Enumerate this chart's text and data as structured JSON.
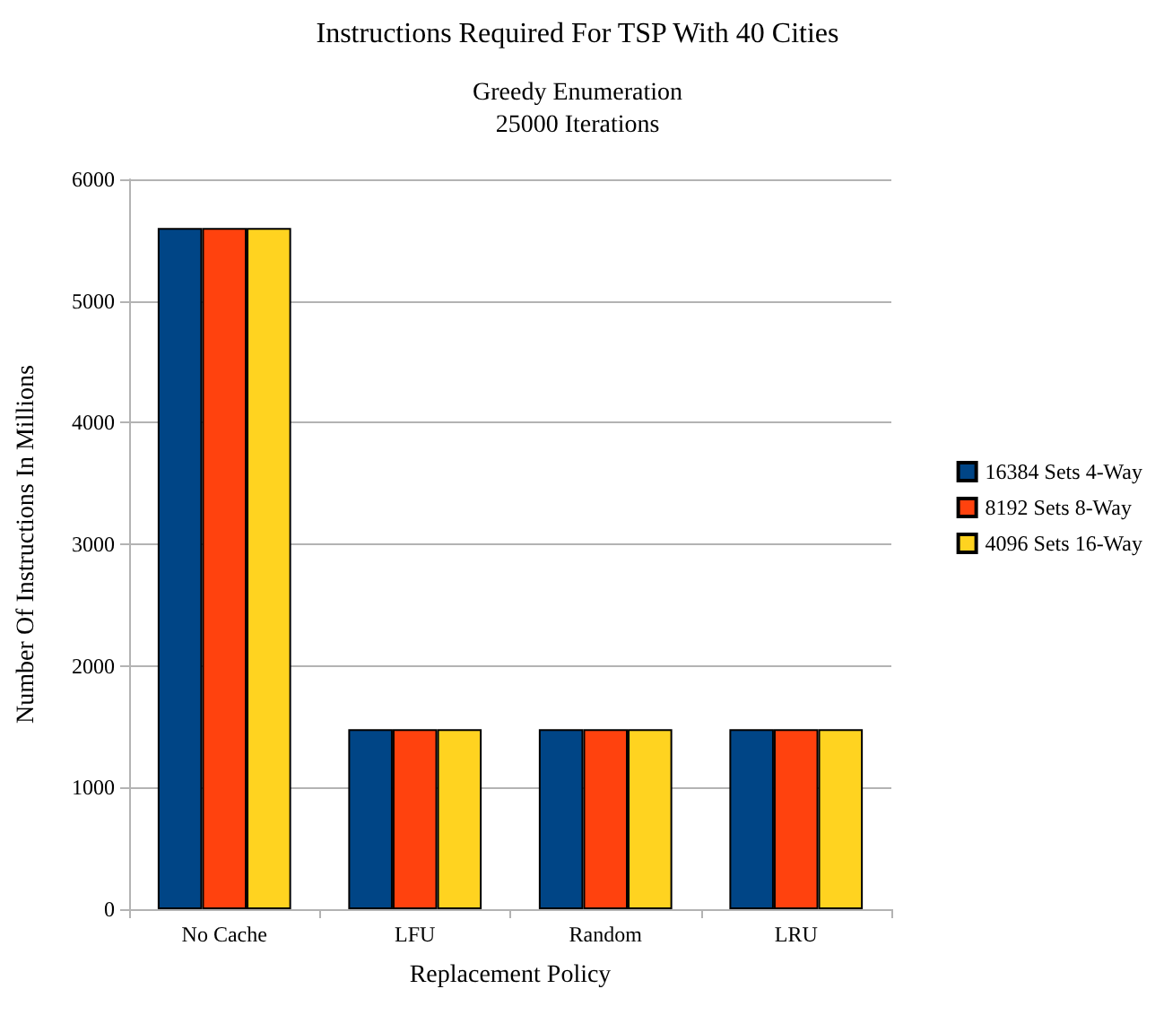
{
  "chart_data": {
    "type": "bar",
    "title": "Instructions Required For TSP With 40 Cities",
    "subtitle": "Greedy Enumeration\n25000 Iterations",
    "xlabel": "Replacement Policy",
    "ylabel": "Number Of Instructions In Millions",
    "categories": [
      "No Cache",
      "LFU",
      "Random",
      "LRU"
    ],
    "series": [
      {
        "name": "16384 Sets 4-Way",
        "color": "#004586",
        "values": [
          5600,
          1480,
          1480,
          1480
        ]
      },
      {
        "name": "8192 Sets 8-Way",
        "color": "#ff420e",
        "values": [
          5600,
          1480,
          1480,
          1480
        ]
      },
      {
        "name": "4096 Sets 16-Way",
        "color": "#ffd320",
        "values": [
          5600,
          1480,
          1480,
          1480
        ]
      }
    ],
    "ylim": [
      0,
      6000
    ],
    "yticks": [
      0,
      1000,
      2000,
      3000,
      4000,
      5000,
      6000
    ],
    "grid": "y",
    "legend": "right"
  }
}
